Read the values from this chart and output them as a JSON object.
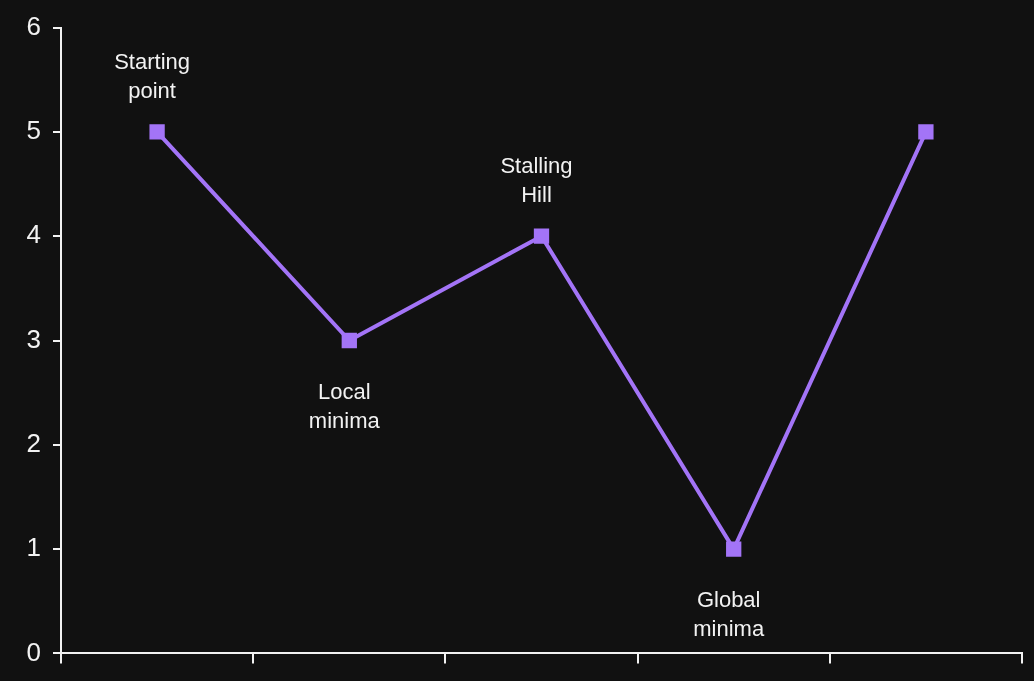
{
  "chart_data": {
    "type": "line",
    "categories": [
      null,
      null,
      null,
      null,
      null
    ],
    "series": [
      {
        "color": "#a374f7",
        "values": [
          5,
          3,
          4,
          1,
          5
        ]
      }
    ],
    "ylim": [
      0,
      6
    ],
    "yticks": [
      0,
      1,
      2,
      3,
      4,
      5,
      6
    ],
    "marker": "square",
    "grid": false,
    "legend": false,
    "annotations": [
      "Starting\npoint",
      "Local\nminima",
      "Stalling\nHill",
      "Global\nminima"
    ]
  }
}
